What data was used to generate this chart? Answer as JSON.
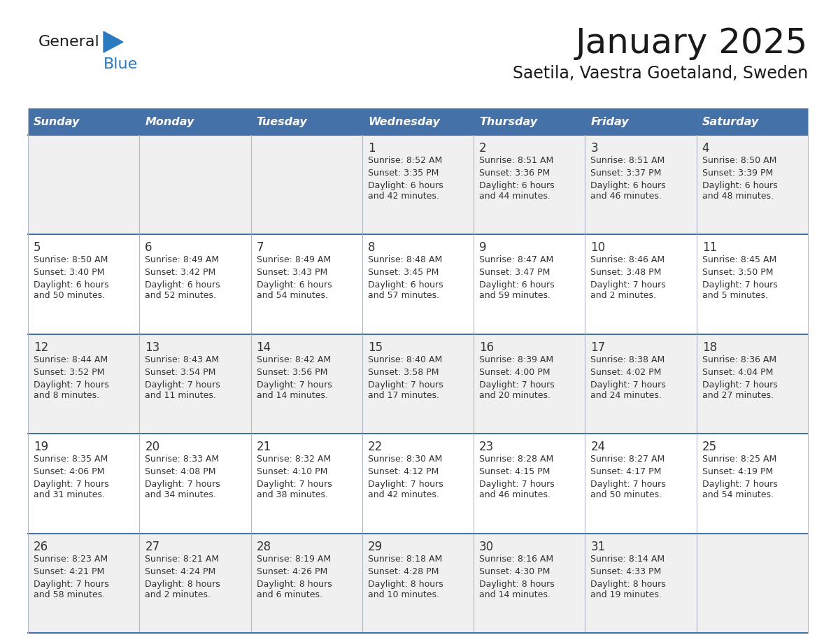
{
  "title": "January 2025",
  "subtitle": "Saetila, Vaestra Goetaland, Sweden",
  "days_of_week": [
    "Sunday",
    "Monday",
    "Tuesday",
    "Wednesday",
    "Thursday",
    "Friday",
    "Saturday"
  ],
  "header_bg": "#4472a8",
  "header_text": "#ffffff",
  "row_bg_light": "#f0f0f0",
  "row_bg_white": "#ffffff",
  "cell_text": "#333333",
  "border_color": "#4472a8",
  "sep_color": "#b0b8c8",
  "title_color": "#1a1a1a",
  "subtitle_color": "#1a1a1a",
  "logo_general_color": "#1a1a1a",
  "logo_blue_color": "#2a7abf",
  "logo_triangle_color": "#2a7abf",
  "calendar_data": [
    [
      null,
      null,
      null,
      {
        "day": 1,
        "sunrise": "8:52 AM",
        "sunset": "3:35 PM",
        "daylight": "6 hours\nand 42 minutes."
      },
      {
        "day": 2,
        "sunrise": "8:51 AM",
        "sunset": "3:36 PM",
        "daylight": "6 hours\nand 44 minutes."
      },
      {
        "day": 3,
        "sunrise": "8:51 AM",
        "sunset": "3:37 PM",
        "daylight": "6 hours\nand 46 minutes."
      },
      {
        "day": 4,
        "sunrise": "8:50 AM",
        "sunset": "3:39 PM",
        "daylight": "6 hours\nand 48 minutes."
      }
    ],
    [
      {
        "day": 5,
        "sunrise": "8:50 AM",
        "sunset": "3:40 PM",
        "daylight": "6 hours\nand 50 minutes."
      },
      {
        "day": 6,
        "sunrise": "8:49 AM",
        "sunset": "3:42 PM",
        "daylight": "6 hours\nand 52 minutes."
      },
      {
        "day": 7,
        "sunrise": "8:49 AM",
        "sunset": "3:43 PM",
        "daylight": "6 hours\nand 54 minutes."
      },
      {
        "day": 8,
        "sunrise": "8:48 AM",
        "sunset": "3:45 PM",
        "daylight": "6 hours\nand 57 minutes."
      },
      {
        "day": 9,
        "sunrise": "8:47 AM",
        "sunset": "3:47 PM",
        "daylight": "6 hours\nand 59 minutes."
      },
      {
        "day": 10,
        "sunrise": "8:46 AM",
        "sunset": "3:48 PM",
        "daylight": "7 hours\nand 2 minutes."
      },
      {
        "day": 11,
        "sunrise": "8:45 AM",
        "sunset": "3:50 PM",
        "daylight": "7 hours\nand 5 minutes."
      }
    ],
    [
      {
        "day": 12,
        "sunrise": "8:44 AM",
        "sunset": "3:52 PM",
        "daylight": "7 hours\nand 8 minutes."
      },
      {
        "day": 13,
        "sunrise": "8:43 AM",
        "sunset": "3:54 PM",
        "daylight": "7 hours\nand 11 minutes."
      },
      {
        "day": 14,
        "sunrise": "8:42 AM",
        "sunset": "3:56 PM",
        "daylight": "7 hours\nand 14 minutes."
      },
      {
        "day": 15,
        "sunrise": "8:40 AM",
        "sunset": "3:58 PM",
        "daylight": "7 hours\nand 17 minutes."
      },
      {
        "day": 16,
        "sunrise": "8:39 AM",
        "sunset": "4:00 PM",
        "daylight": "7 hours\nand 20 minutes."
      },
      {
        "day": 17,
        "sunrise": "8:38 AM",
        "sunset": "4:02 PM",
        "daylight": "7 hours\nand 24 minutes."
      },
      {
        "day": 18,
        "sunrise": "8:36 AM",
        "sunset": "4:04 PM",
        "daylight": "7 hours\nand 27 minutes."
      }
    ],
    [
      {
        "day": 19,
        "sunrise": "8:35 AM",
        "sunset": "4:06 PM",
        "daylight": "7 hours\nand 31 minutes."
      },
      {
        "day": 20,
        "sunrise": "8:33 AM",
        "sunset": "4:08 PM",
        "daylight": "7 hours\nand 34 minutes."
      },
      {
        "day": 21,
        "sunrise": "8:32 AM",
        "sunset": "4:10 PM",
        "daylight": "7 hours\nand 38 minutes."
      },
      {
        "day": 22,
        "sunrise": "8:30 AM",
        "sunset": "4:12 PM",
        "daylight": "7 hours\nand 42 minutes."
      },
      {
        "day": 23,
        "sunrise": "8:28 AM",
        "sunset": "4:15 PM",
        "daylight": "7 hours\nand 46 minutes."
      },
      {
        "day": 24,
        "sunrise": "8:27 AM",
        "sunset": "4:17 PM",
        "daylight": "7 hours\nand 50 minutes."
      },
      {
        "day": 25,
        "sunrise": "8:25 AM",
        "sunset": "4:19 PM",
        "daylight": "7 hours\nand 54 minutes."
      }
    ],
    [
      {
        "day": 26,
        "sunrise": "8:23 AM",
        "sunset": "4:21 PM",
        "daylight": "7 hours\nand 58 minutes."
      },
      {
        "day": 27,
        "sunrise": "8:21 AM",
        "sunset": "4:24 PM",
        "daylight": "8 hours\nand 2 minutes."
      },
      {
        "day": 28,
        "sunrise": "8:19 AM",
        "sunset": "4:26 PM",
        "daylight": "8 hours\nand 6 minutes."
      },
      {
        "day": 29,
        "sunrise": "8:18 AM",
        "sunset": "4:28 PM",
        "daylight": "8 hours\nand 10 minutes."
      },
      {
        "day": 30,
        "sunrise": "8:16 AM",
        "sunset": "4:30 PM",
        "daylight": "8 hours\nand 14 minutes."
      },
      {
        "day": 31,
        "sunrise": "8:14 AM",
        "sunset": "4:33 PM",
        "daylight": "8 hours\nand 19 minutes."
      },
      null
    ]
  ]
}
